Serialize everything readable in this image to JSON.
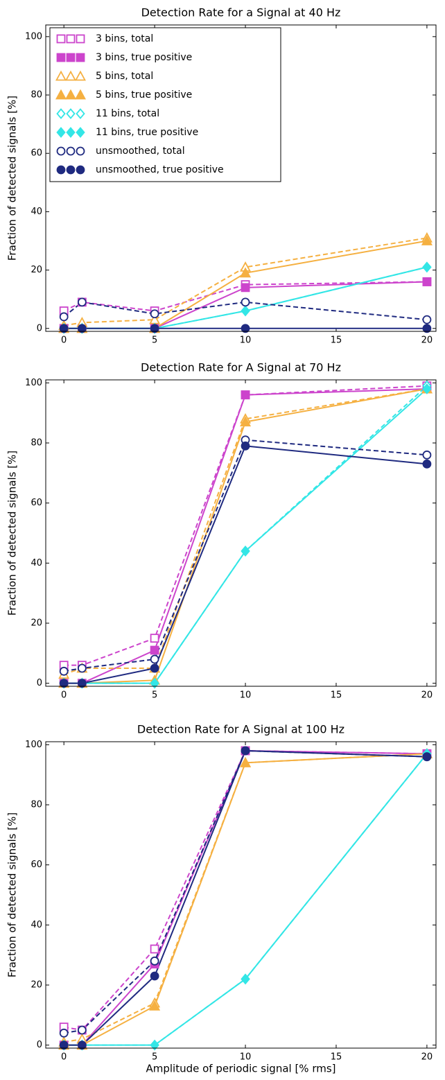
{
  "chart_data": [
    {
      "type": "line",
      "title": "Detection Rate for a Signal at 40 Hz",
      "ylabel": "Fraction of detected signals [%]",
      "x": [
        0,
        1,
        5,
        10,
        20
      ],
      "xlim": [
        -1,
        20.5
      ],
      "xticks": [
        0,
        5,
        10,
        15,
        20
      ],
      "ylim": [
        -1,
        104
      ],
      "yticks": [
        0,
        20,
        40,
        60,
        80,
        100
      ],
      "legend": "upper left",
      "series": [
        {
          "name": "3 bins, total",
          "color": "#cc44cc",
          "marker": "square",
          "filled": false,
          "linestyle": "dashed",
          "values": [
            6,
            9,
            6,
            15,
            16
          ]
        },
        {
          "name": "3 bins, true positive",
          "color": "#cc44cc",
          "marker": "square",
          "filled": true,
          "linestyle": "solid",
          "values": [
            0,
            0,
            0,
            14,
            16
          ]
        },
        {
          "name": "5 bins, total",
          "color": "#f5b041",
          "marker": "triangle",
          "filled": false,
          "linestyle": "dashed",
          "values": [
            1,
            2,
            3,
            21,
            31
          ]
        },
        {
          "name": "5 bins, true positive",
          "color": "#f5b041",
          "marker": "triangle",
          "filled": true,
          "linestyle": "solid",
          "values": [
            0,
            0,
            0,
            19,
            30
          ]
        },
        {
          "name": "11 bins, total",
          "color": "#33e6e6",
          "marker": "diamond",
          "filled": false,
          "linestyle": "dashed",
          "values": [
            0,
            0,
            0,
            6,
            21
          ]
        },
        {
          "name": "11 bins, true positive",
          "color": "#33e6e6",
          "marker": "diamond",
          "filled": true,
          "linestyle": "solid",
          "values": [
            0,
            0,
            0,
            6,
            21
          ]
        },
        {
          "name": "unsmoothed, total",
          "color": "#1f2a80",
          "marker": "circle",
          "filled": false,
          "linestyle": "dashed",
          "values": [
            4,
            9,
            5,
            9,
            3
          ]
        },
        {
          "name": "unsmoothed, true positive",
          "color": "#1f2a80",
          "marker": "circle",
          "filled": true,
          "linestyle": "solid",
          "values": [
            0,
            0,
            0,
            0,
            0
          ]
        }
      ]
    },
    {
      "type": "line",
      "title": "Detection Rate for A Signal at 70 Hz",
      "ylabel": "Fraction of detected signals [%]",
      "x": [
        0,
        1,
        5,
        10,
        20
      ],
      "xlim": [
        -1,
        20.5
      ],
      "xticks": [
        0,
        5,
        10,
        15,
        20
      ],
      "ylim": [
        -1,
        101
      ],
      "yticks": [
        0,
        20,
        40,
        60,
        80,
        100
      ],
      "series": [
        {
          "color": "#cc44cc",
          "marker": "square",
          "filled": false,
          "linestyle": "dashed",
          "values": [
            6,
            6,
            15,
            96,
            99
          ]
        },
        {
          "color": "#cc44cc",
          "marker": "square",
          "filled": true,
          "linestyle": "solid",
          "values": [
            0,
            0,
            11,
            96,
            98
          ]
        },
        {
          "color": "#f5b041",
          "marker": "triangle",
          "filled": false,
          "linestyle": "dashed",
          "values": [
            3,
            5,
            5,
            88,
            98
          ]
        },
        {
          "color": "#f5b041",
          "marker": "triangle",
          "filled": true,
          "linestyle": "solid",
          "values": [
            0,
            0,
            1,
            87,
            98
          ]
        },
        {
          "color": "#33e6e6",
          "marker": "diamond",
          "filled": false,
          "linestyle": "dashed",
          "values": [
            0,
            0,
            0,
            44,
            99
          ]
        },
        {
          "color": "#33e6e6",
          "marker": "diamond",
          "filled": true,
          "linestyle": "solid",
          "values": [
            0,
            0,
            0,
            44,
            98
          ]
        },
        {
          "color": "#1f2a80",
          "marker": "circle",
          "filled": false,
          "linestyle": "dashed",
          "values": [
            4,
            5,
            8,
            81,
            76
          ]
        },
        {
          "color": "#1f2a80",
          "marker": "circle",
          "filled": true,
          "linestyle": "solid",
          "values": [
            0,
            0,
            5,
            79,
            73
          ]
        }
      ]
    },
    {
      "type": "line",
      "title": "Detection Rate for A Signal at 100 Hz",
      "ylabel": "Fraction of detected signals [%]",
      "xlabel": "Amplitude of periodic signal [% rms]",
      "x": [
        0,
        1,
        5,
        10,
        20
      ],
      "xlim": [
        -1,
        20.5
      ],
      "xticks": [
        0,
        5,
        10,
        15,
        20
      ],
      "ylim": [
        -1,
        101
      ],
      "yticks": [
        0,
        20,
        40,
        60,
        80,
        100
      ],
      "series": [
        {
          "color": "#cc44cc",
          "marker": "square",
          "filled": false,
          "linestyle": "dashed",
          "values": [
            6,
            5,
            32,
            98,
            97
          ]
        },
        {
          "color": "#cc44cc",
          "marker": "square",
          "filled": true,
          "linestyle": "solid",
          "values": [
            0,
            0,
            27,
            98,
            97
          ]
        },
        {
          "color": "#f5b041",
          "marker": "triangle",
          "filled": false,
          "linestyle": "dashed",
          "values": [
            1,
            2,
            14,
            94,
            97
          ]
        },
        {
          "color": "#f5b041",
          "marker": "triangle",
          "filled": true,
          "linestyle": "solid",
          "values": [
            0,
            0,
            13,
            94,
            97
          ]
        },
        {
          "color": "#33e6e6",
          "marker": "diamond",
          "filled": false,
          "linestyle": "dashed",
          "values": [
            0,
            0,
            0,
            22,
            97
          ]
        },
        {
          "color": "#33e6e6",
          "marker": "diamond",
          "filled": true,
          "linestyle": "solid",
          "values": [
            0,
            0,
            0,
            22,
            97
          ]
        },
        {
          "color": "#1f2a80",
          "marker": "circle",
          "filled": false,
          "linestyle": "dashed",
          "values": [
            4,
            5,
            28,
            98,
            96
          ]
        },
        {
          "color": "#1f2a80",
          "marker": "circle",
          "filled": true,
          "linestyle": "solid",
          "values": [
            0,
            0,
            23,
            98,
            96
          ]
        }
      ]
    }
  ]
}
